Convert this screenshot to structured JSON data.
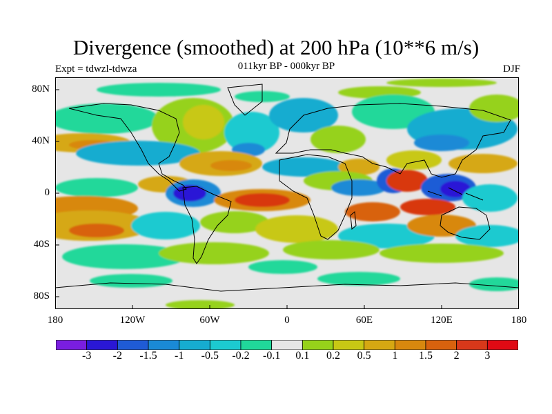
{
  "title": "Divergence (smoothed) at 200 hPa (10**6 m/s)",
  "subtitle_left": "Expt = tdwzl-tdwza",
  "subtitle_center": "011kyr BP - 000kyr BP",
  "subtitle_right": "DJF",
  "map": {
    "projection": "cylindrical equidistant",
    "lon_range": [
      -180,
      180
    ],
    "lat_range": [
      -90,
      90
    ],
    "background_color": "#e6e6e6",
    "lat_ticks": [
      "80N",
      "40N",
      "0",
      "40S",
      "80S"
    ],
    "lon_ticks": [
      "180",
      "120W",
      "60W",
      "0",
      "60E",
      "120E",
      "180"
    ]
  },
  "colorbar": {
    "colors": [
      "#7a1ee0",
      "#2a17d6",
      "#1f5bd6",
      "#1a8ad6",
      "#16acd0",
      "#1ccad0",
      "#20d89a",
      "#e6e6e6",
      "#96d21a",
      "#c8c814",
      "#d6a812",
      "#d8880e",
      "#d8620e",
      "#d8381a",
      "#e00a14"
    ],
    "labels": [
      "-3",
      "-2",
      "-1.5",
      "-1",
      "-0.5",
      "-0.2",
      "-0.1",
      "0.1",
      "0.2",
      "0.5",
      "1",
      "1.5",
      "2",
      "3"
    ]
  }
}
